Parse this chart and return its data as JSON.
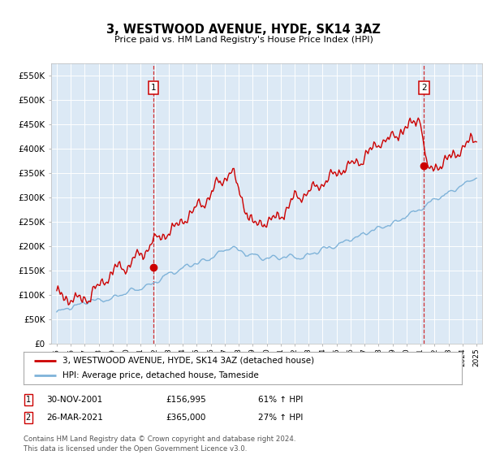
{
  "title": "3, WESTWOOD AVENUE, HYDE, SK14 3AZ",
  "subtitle": "Price paid vs. HM Land Registry's House Price Index (HPI)",
  "bg_color": "#dce9f5",
  "hpi_color": "#7fb3d9",
  "price_color": "#cc0000",
  "vline_color": "#cc0000",
  "ylim": [
    0,
    575000
  ],
  "yticks": [
    0,
    50000,
    100000,
    150000,
    200000,
    250000,
    300000,
    350000,
    400000,
    450000,
    500000,
    550000
  ],
  "ytick_labels": [
    "£0",
    "£50K",
    "£100K",
    "£150K",
    "£200K",
    "£250K",
    "£300K",
    "£350K",
    "£400K",
    "£450K",
    "£500K",
    "£550K"
  ],
  "sale1_year": 2001.917,
  "sale1_price": 156995,
  "sale2_year": 2021.25,
  "sale2_price": 365000,
  "sale1_date": "30-NOV-2001",
  "sale2_date": "26-MAR-2021",
  "sale1_hpi_pct": "61% ↑ HPI",
  "sale2_hpi_pct": "27% ↑ HPI",
  "legend_line1": "3, WESTWOOD AVENUE, HYDE, SK14 3AZ (detached house)",
  "legend_line2": "HPI: Average price, detached house, Tameside",
  "footer": "Contains HM Land Registry data © Crown copyright and database right 2024.\nThis data is licensed under the Open Government Licence v3.0."
}
